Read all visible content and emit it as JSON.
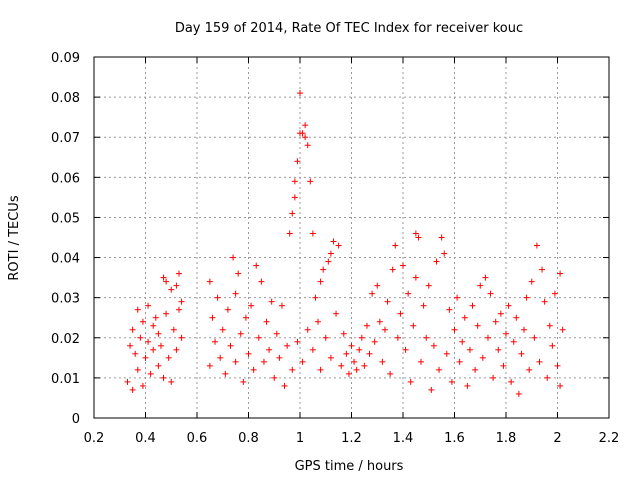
{
  "chart_data": {
    "type": "scatter",
    "title": "Day 159 of 2014, Rate Of TEC Index for receiver kouc",
    "xlabel": "GPS time / hours",
    "ylabel": "ROTI / TECUs",
    "xlim": [
      0.2,
      2.2
    ],
    "ylim": [
      0,
      0.09
    ],
    "xticks": [
      0.2,
      0.4,
      0.6,
      0.8,
      1.0,
      1.2,
      1.4,
      1.6,
      1.8,
      2.0,
      2.2
    ],
    "xtick_labels": [
      "0.2",
      "0.4",
      "0.6",
      "0.8",
      "1",
      "1.2",
      "1.4",
      "1.6",
      "1.8",
      "2",
      "2.2"
    ],
    "yticks": [
      0,
      0.01,
      0.02,
      0.03,
      0.04,
      0.05,
      0.06,
      0.07,
      0.08,
      0.09
    ],
    "ytick_labels": [
      "0",
      "0.01",
      "0.02",
      "0.03",
      "0.04",
      "0.05",
      "0.06",
      "0.07",
      "0.08",
      "0.09"
    ],
    "grid": true,
    "marker": "+",
    "color": "#ff0000",
    "series": [
      {
        "name": "ROTI",
        "points": [
          [
            0.33,
            0.009
          ],
          [
            0.34,
            0.018
          ],
          [
            0.35,
            0.022
          ],
          [
            0.35,
            0.007
          ],
          [
            0.36,
            0.016
          ],
          [
            0.37,
            0.027
          ],
          [
            0.37,
            0.012
          ],
          [
            0.38,
            0.02
          ],
          [
            0.39,
            0.024
          ],
          [
            0.39,
            0.008
          ],
          [
            0.4,
            0.015
          ],
          [
            0.41,
            0.028
          ],
          [
            0.41,
            0.019
          ],
          [
            0.42,
            0.011
          ],
          [
            0.43,
            0.023
          ],
          [
            0.43,
            0.017
          ],
          [
            0.44,
            0.025
          ],
          [
            0.45,
            0.013
          ],
          [
            0.45,
            0.021
          ],
          [
            0.46,
            0.018
          ],
          [
            0.47,
            0.035
          ],
          [
            0.47,
            0.01
          ],
          [
            0.48,
            0.026
          ],
          [
            0.48,
            0.034
          ],
          [
            0.49,
            0.015
          ],
          [
            0.5,
            0.032
          ],
          [
            0.5,
            0.009
          ],
          [
            0.51,
            0.022
          ],
          [
            0.52,
            0.033
          ],
          [
            0.52,
            0.017
          ],
          [
            0.53,
            0.036
          ],
          [
            0.53,
            0.027
          ],
          [
            0.54,
            0.02
          ],
          [
            0.54,
            0.029
          ],
          [
            0.65,
            0.034
          ],
          [
            0.65,
            0.013
          ],
          [
            0.66,
            0.025
          ],
          [
            0.67,
            0.019
          ],
          [
            0.68,
            0.03
          ],
          [
            0.69,
            0.015
          ],
          [
            0.7,
            0.022
          ],
          [
            0.71,
            0.011
          ],
          [
            0.72,
            0.027
          ],
          [
            0.73,
            0.018
          ],
          [
            0.74,
            0.04
          ],
          [
            0.75,
            0.031
          ],
          [
            0.75,
            0.014
          ],
          [
            0.76,
            0.036
          ],
          [
            0.77,
            0.021
          ],
          [
            0.78,
            0.009
          ],
          [
            0.79,
            0.025
          ],
          [
            0.8,
            0.016
          ],
          [
            0.81,
            0.028
          ],
          [
            0.82,
            0.012
          ],
          [
            0.83,
            0.038
          ],
          [
            0.84,
            0.02
          ],
          [
            0.85,
            0.034
          ],
          [
            0.86,
            0.014
          ],
          [
            0.87,
            0.024
          ],
          [
            0.88,
            0.017
          ],
          [
            0.89,
            0.029
          ],
          [
            0.9,
            0.01
          ],
          [
            0.91,
            0.021
          ],
          [
            0.92,
            0.015
          ],
          [
            0.93,
            0.028
          ],
          [
            0.94,
            0.008
          ],
          [
            0.95,
            0.018
          ],
          [
            0.96,
            0.046
          ],
          [
            0.97,
            0.051
          ],
          [
            0.97,
            0.012
          ],
          [
            0.98,
            0.055
          ],
          [
            0.98,
            0.059
          ],
          [
            0.99,
            0.064
          ],
          [
            0.99,
            0.019
          ],
          [
            1.0,
            0.071
          ],
          [
            1.0,
            0.081
          ],
          [
            1.01,
            0.071
          ],
          [
            1.01,
            0.014
          ],
          [
            1.02,
            0.07
          ],
          [
            1.02,
            0.073
          ],
          [
            1.03,
            0.068
          ],
          [
            1.03,
            0.022
          ],
          [
            1.04,
            0.059
          ],
          [
            1.05,
            0.046
          ],
          [
            1.05,
            0.017
          ],
          [
            1.06,
            0.03
          ],
          [
            1.07,
            0.024
          ],
          [
            1.08,
            0.034
          ],
          [
            1.08,
            0.012
          ],
          [
            1.09,
            0.037
          ],
          [
            1.1,
            0.02
          ],
          [
            1.11,
            0.039
          ],
          [
            1.12,
            0.041
          ],
          [
            1.12,
            0.015
          ],
          [
            1.13,
            0.044
          ],
          [
            1.14,
            0.026
          ],
          [
            1.15,
            0.043
          ],
          [
            1.16,
            0.013
          ],
          [
            1.17,
            0.021
          ],
          [
            1.18,
            0.016
          ],
          [
            1.19,
            0.011
          ],
          [
            1.2,
            0.018
          ],
          [
            1.21,
            0.014
          ],
          [
            1.22,
            0.012
          ],
          [
            1.23,
            0.017
          ],
          [
            1.24,
            0.02
          ],
          [
            1.25,
            0.013
          ],
          [
            1.26,
            0.023
          ],
          [
            1.27,
            0.016
          ],
          [
            1.28,
            0.031
          ],
          [
            1.29,
            0.019
          ],
          [
            1.3,
            0.033
          ],
          [
            1.31,
            0.024
          ],
          [
            1.32,
            0.014
          ],
          [
            1.33,
            0.022
          ],
          [
            1.34,
            0.029
          ],
          [
            1.35,
            0.011
          ],
          [
            1.36,
            0.037
          ],
          [
            1.37,
            0.043
          ],
          [
            1.38,
            0.02
          ],
          [
            1.39,
            0.026
          ],
          [
            1.4,
            0.038
          ],
          [
            1.41,
            0.017
          ],
          [
            1.42,
            0.031
          ],
          [
            1.43,
            0.009
          ],
          [
            1.44,
            0.023
          ],
          [
            1.45,
            0.046
          ],
          [
            1.45,
            0.035
          ],
          [
            1.46,
            0.045
          ],
          [
            1.47,
            0.014
          ],
          [
            1.48,
            0.028
          ],
          [
            1.49,
            0.02
          ],
          [
            1.5,
            0.033
          ],
          [
            1.51,
            0.007
          ],
          [
            1.52,
            0.018
          ],
          [
            1.53,
            0.039
          ],
          [
            1.54,
            0.012
          ],
          [
            1.55,
            0.045
          ],
          [
            1.56,
            0.041
          ],
          [
            1.57,
            0.016
          ],
          [
            1.58,
            0.027
          ],
          [
            1.59,
            0.009
          ],
          [
            1.6,
            0.022
          ],
          [
            1.61,
            0.03
          ],
          [
            1.62,
            0.014
          ],
          [
            1.63,
            0.019
          ],
          [
            1.64,
            0.025
          ],
          [
            1.65,
            0.008
          ],
          [
            1.66,
            0.017
          ],
          [
            1.67,
            0.028
          ],
          [
            1.68,
            0.012
          ],
          [
            1.69,
            0.023
          ],
          [
            1.7,
            0.033
          ],
          [
            1.71,
            0.015
          ],
          [
            1.72,
            0.035
          ],
          [
            1.73,
            0.02
          ],
          [
            1.74,
            0.031
          ],
          [
            1.75,
            0.01
          ],
          [
            1.76,
            0.024
          ],
          [
            1.77,
            0.017
          ],
          [
            1.78,
            0.026
          ],
          [
            1.79,
            0.013
          ],
          [
            1.8,
            0.021
          ],
          [
            1.81,
            0.028
          ],
          [
            1.82,
            0.009
          ],
          [
            1.83,
            0.019
          ],
          [
            1.84,
            0.025
          ],
          [
            1.85,
            0.006
          ],
          [
            1.86,
            0.016
          ],
          [
            1.87,
            0.022
          ],
          [
            1.88,
            0.03
          ],
          [
            1.89,
            0.012
          ],
          [
            1.9,
            0.034
          ],
          [
            1.91,
            0.02
          ],
          [
            1.92,
            0.043
          ],
          [
            1.93,
            0.014
          ],
          [
            1.94,
            0.037
          ],
          [
            1.95,
            0.029
          ],
          [
            1.96,
            0.01
          ],
          [
            1.97,
            0.023
          ],
          [
            1.98,
            0.018
          ],
          [
            1.99,
            0.031
          ],
          [
            2.0,
            0.013
          ],
          [
            2.01,
            0.036
          ],
          [
            2.01,
            0.008
          ],
          [
            2.02,
            0.022
          ]
        ]
      }
    ]
  }
}
